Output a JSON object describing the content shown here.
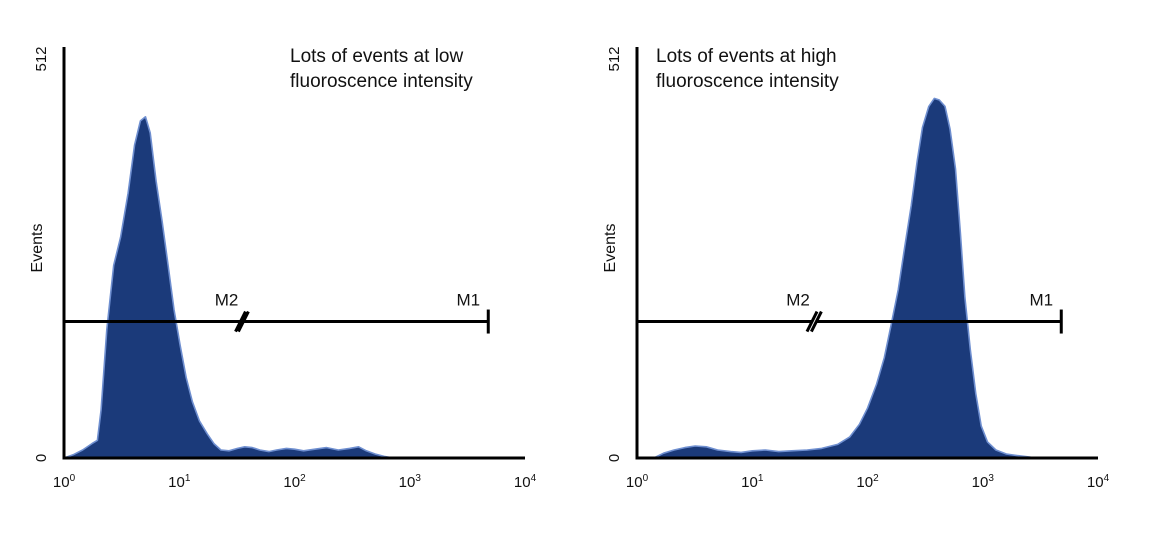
{
  "chart_data": [
    {
      "type": "area",
      "title": "",
      "annotation": [
        "Lots of events at low",
        "fluoroscence intensity"
      ],
      "ylabel": "Events",
      "xlabel": "",
      "xscale": "log",
      "xlim": [
        1,
        10000
      ],
      "ylim": [
        0,
        512
      ],
      "x_ticks": [
        {
          "base": "10",
          "exp": "0"
        },
        {
          "base": "10",
          "exp": "1"
        },
        {
          "base": "10",
          "exp": "2"
        },
        {
          "base": "10",
          "exp": "3"
        },
        {
          "base": "10",
          "exp": "4"
        }
      ],
      "y_ticks": [
        "0",
        "512"
      ],
      "fill_color": "#1b3a7a",
      "edge_color": "#6f8fd0",
      "series": [
        {
          "x": [
            1.0,
            1.2,
            1.45,
            1.75,
            1.95,
            2.1,
            2.35,
            2.7,
            3.1,
            3.6,
            4.1,
            4.6,
            5.1,
            5.6,
            6.3,
            7.1,
            8.0,
            9.0,
            10.2,
            11.5,
            13,
            15,
            17.5,
            20,
            23,
            27,
            32,
            37,
            43,
            50,
            60,
            70,
            85,
            100,
            120,
            150,
            190,
            240,
            300,
            360,
            420,
            500,
            600,
            720
          ],
          "y": [
            0,
            4,
            10,
            18,
            22,
            60,
            160,
            240,
            275,
            330,
            390,
            420,
            425,
            405,
            345,
            295,
            240,
            185,
            140,
            100,
            70,
            46,
            30,
            18,
            10,
            9,
            12,
            14,
            13,
            10,
            8,
            10,
            12,
            11,
            9,
            11,
            13,
            10,
            12,
            14,
            9,
            5,
            2,
            0
          ]
        }
      ],
      "markers": [
        {
          "label": "M2",
          "from": 1,
          "to": 34
        },
        {
          "label": "M1",
          "from": 36,
          "to": 4800
        }
      ],
      "marker_y": 170
    },
    {
      "type": "area",
      "title": "",
      "annotation": [
        "Lots of events at high",
        "fluoroscence intensity"
      ],
      "ylabel": "Events",
      "xlabel": "",
      "xscale": "log",
      "xlim": [
        1,
        10000
      ],
      "ylim": [
        0,
        512
      ],
      "x_ticks": [
        {
          "base": "10",
          "exp": "0"
        },
        {
          "base": "10",
          "exp": "1"
        },
        {
          "base": "10",
          "exp": "2"
        },
        {
          "base": "10",
          "exp": "3"
        },
        {
          "base": "10",
          "exp": "4"
        }
      ],
      "y_ticks": [
        "0",
        "512"
      ],
      "fill_color": "#1b3a7a",
      "edge_color": "#6f8fd0",
      "series": [
        {
          "x": [
            1.4,
            1.7,
            2.1,
            2.6,
            3.2,
            4.0,
            5.0,
            6.5,
            8.0,
            10,
            13,
            17,
            22,
            30,
            40,
            55,
            70,
            85,
            100,
            120,
            140,
            160,
            185,
            210,
            240,
            270,
            300,
            340,
            380,
            420,
            470,
            520,
            580,
            640,
            700,
            780,
            870,
            970,
            1100,
            1300,
            1600,
            2000,
            2600,
            3300
          ],
          "y": [
            0,
            6,
            10,
            13,
            15,
            14,
            10,
            8,
            7,
            9,
            10,
            8,
            9,
            10,
            12,
            17,
            26,
            42,
            62,
            92,
            125,
            165,
            210,
            262,
            315,
            370,
            412,
            438,
            448,
            446,
            438,
            410,
            360,
            280,
            200,
            135,
            80,
            40,
            20,
            10,
            5,
            3,
            1,
            0
          ]
        }
      ],
      "markers": [
        {
          "label": "M2",
          "from": 1,
          "to": 33
        },
        {
          "label": "M1",
          "from": 36,
          "to": 4800
        }
      ],
      "marker_y": 170
    }
  ]
}
